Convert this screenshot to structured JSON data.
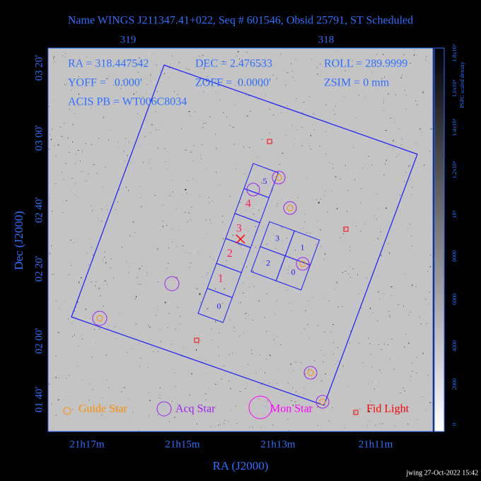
{
  "title": "Name WINGS J211347.41+022, Seq # 601546, Obsid 25791, ST Scheduled",
  "info": {
    "ra": "RA = 318.447542",
    "dec": "DEC = 2.476533",
    "roll": "ROLL = 289.9999",
    "yoff": "YOFF =   0.000'",
    "zoff": "ZOFF =  0.0000'",
    "zsim": "ZSIM = 0 mm",
    "acis": "ACIS PB = WT006C8034"
  },
  "axes": {
    "x_label": "RA (J2000)",
    "y_label": "Dec (J2000)",
    "top_ticks": [
      "319",
      "318"
    ],
    "bottom_ticks": [
      "21h17m",
      "21h15m",
      "21h13m",
      "21h11m"
    ],
    "left_ticks": [
      "03 20'",
      "03 00'",
      "02 40'",
      "02 20'",
      "02 00'",
      "01 40'"
    ]
  },
  "colorbar": {
    "label": "PSPC scaled density",
    "ticks": [
      "0",
      "2000",
      "4000",
      "6000",
      "8000",
      "10⁴",
      "1.2x10⁴",
      "1.4x10⁴",
      "1.6x10⁴",
      "1.8x10⁴"
    ]
  },
  "chips": {
    "s_array": [
      "0",
      "1",
      "2",
      "3",
      "4",
      "5"
    ],
    "i_array": [
      "0",
      "1",
      "2",
      "3"
    ]
  },
  "legend": {
    "guide": "Guide Star",
    "acq": "Acq Star",
    "mon": "Mon Star",
    "fid": "Fid Light"
  },
  "footer": "jwing 27-Oct-2022 15:42"
}
